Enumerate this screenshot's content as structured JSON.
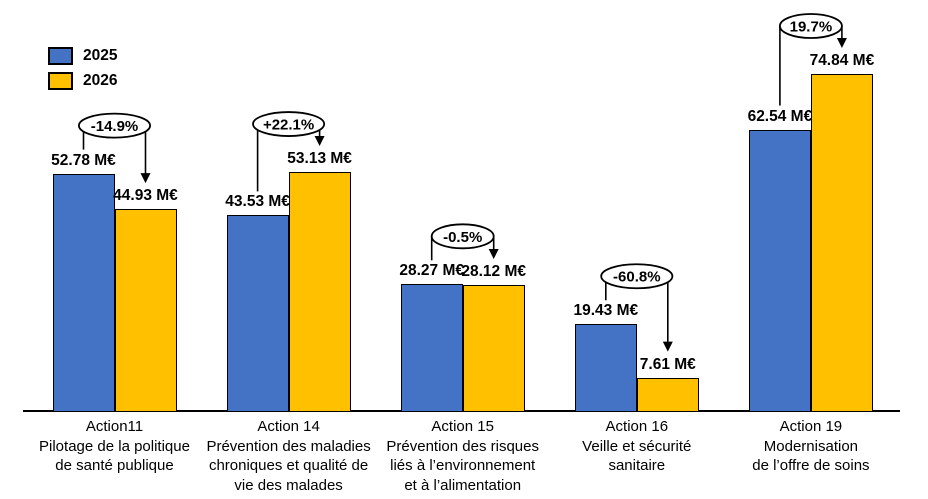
{
  "page": {
    "background": "#ffffff"
  },
  "legend": {
    "items": [
      {
        "label": "2025",
        "color": "#4472C4"
      },
      {
        "label": "2026",
        "color": "#FFC000"
      }
    ]
  },
  "chart_data": {
    "type": "bar",
    "title": "",
    "xlabel": "",
    "ylabel": "",
    "unit": "M€",
    "grid": false,
    "y_axis_visible": false,
    "legend_position": "top-left",
    "ylim": [
      0,
      80
    ],
    "categories": [
      "Action11\nPilotage de la politique\nde santé publique",
      "Action 14\nPrévention des maladies\nchroniques et qualité de\nvie des malades",
      "Action 15\nPrévention des risques\nliés à l’environnement\net à l’alimentation",
      "Action 16\nVeille et sécurité\nsanitaire",
      "Action 19\nModernisation\nde l’offre de soins"
    ],
    "series": [
      {
        "name": "2025",
        "color": "#4472C4",
        "values": [
          52.78,
          43.53,
          28.27,
          19.43,
          62.54
        ]
      },
      {
        "name": "2026",
        "color": "#FFC000",
        "values": [
          44.93,
          53.13,
          28.12,
          7.61,
          74.84
        ]
      }
    ],
    "value_labels": [
      [
        "52.78 M€",
        "43.53 M€",
        "28.27 M€",
        "19.43 M€",
        "62.54 M€"
      ],
      [
        "44.93 M€",
        "53.13 M€",
        "28.12 M€",
        "7.61 M€",
        "74.84 M€"
      ]
    ],
    "annotations": {
      "style": "ellipse-with-arrow-to-2026-bar",
      "percent_change": [
        "-14.9%",
        "+22.1%",
        "-0.5%",
        "-60.8%",
        "19.7%"
      ]
    },
    "colors": {
      "bar_border": "#000000",
      "annotation_stroke": "#000000",
      "annotation_fill": "#ffffff"
    }
  }
}
